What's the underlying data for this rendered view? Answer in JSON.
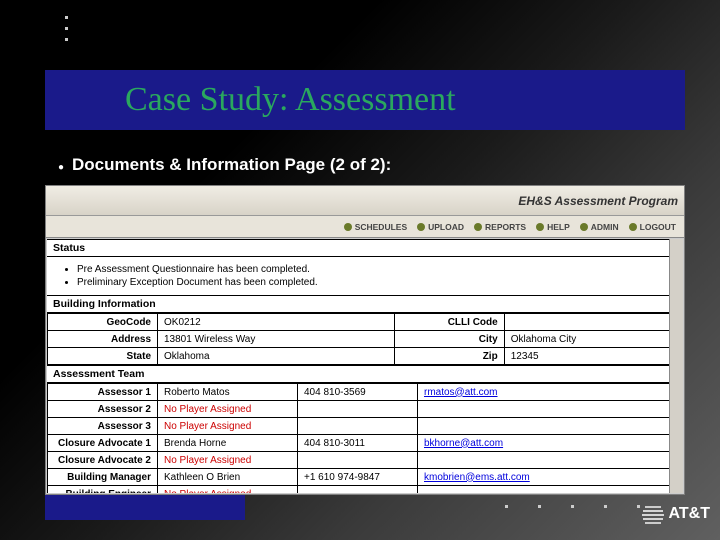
{
  "slide": {
    "title": "Case Study: Assessment",
    "subtitle": "Documents & Information Page (2 of 2):",
    "title_color": "#2aa85e",
    "title_bg": "#1a1a8a"
  },
  "app": {
    "program_title": "EH&S Assessment Program",
    "nav": [
      {
        "label": "SCHEDULES"
      },
      {
        "label": "UPLOAD"
      },
      {
        "label": "REPORTS"
      },
      {
        "label": "HELP"
      },
      {
        "label": "ADMIN"
      },
      {
        "label": "LOGOUT"
      }
    ]
  },
  "status": {
    "heading": "Status",
    "items": [
      "Pre Assessment Questionnaire has been completed.",
      "Preliminary Exception Document has been completed."
    ]
  },
  "building": {
    "heading": "Building Information",
    "geo_label": "GeoCode",
    "geo_val": "OK0212",
    "clli_label": "CLLI Code",
    "clli_val": "",
    "addr_label": "Address",
    "addr_val": "13801 Wireless Way",
    "city_label": "City",
    "city_val": "Oklahoma City",
    "state_label": "State",
    "state_val": "Oklahoma",
    "zip_label": "Zip",
    "zip_val": "12345"
  },
  "team": {
    "heading": "Assessment Team",
    "rows": [
      {
        "role": "Assessor 1",
        "name": "Roberto Matos",
        "phone": "404 810-3569",
        "email": "rmatos@att.com",
        "none": false
      },
      {
        "role": "Assessor 2",
        "name": "No Player Assigned",
        "phone": "",
        "email": "",
        "none": true
      },
      {
        "role": "Assessor 3",
        "name": "No Player Assigned",
        "phone": "",
        "email": "",
        "none": true
      },
      {
        "role": "Closure Advocate 1",
        "name": "Brenda Horne",
        "phone": "404 810-3011",
        "email": "bkhorne@att.com",
        "none": false
      },
      {
        "role": "Closure Advocate 2",
        "name": "No Player Assigned",
        "phone": "",
        "email": "",
        "none": true
      },
      {
        "role": "Building Manager",
        "name": "Kathleen O Brien",
        "phone": "+1 610 974-9847",
        "email": "kmobrien@ems.att.com",
        "none": false
      },
      {
        "role": "Building Engineer",
        "name": "No Player Assigned",
        "phone": "",
        "email": "",
        "none": true
      }
    ]
  },
  "footer": {
    "brand": "AT&T"
  },
  "colors": {
    "red": "#cc0000",
    "link": "#0000dd",
    "slide_bg_dark": "#000000"
  }
}
